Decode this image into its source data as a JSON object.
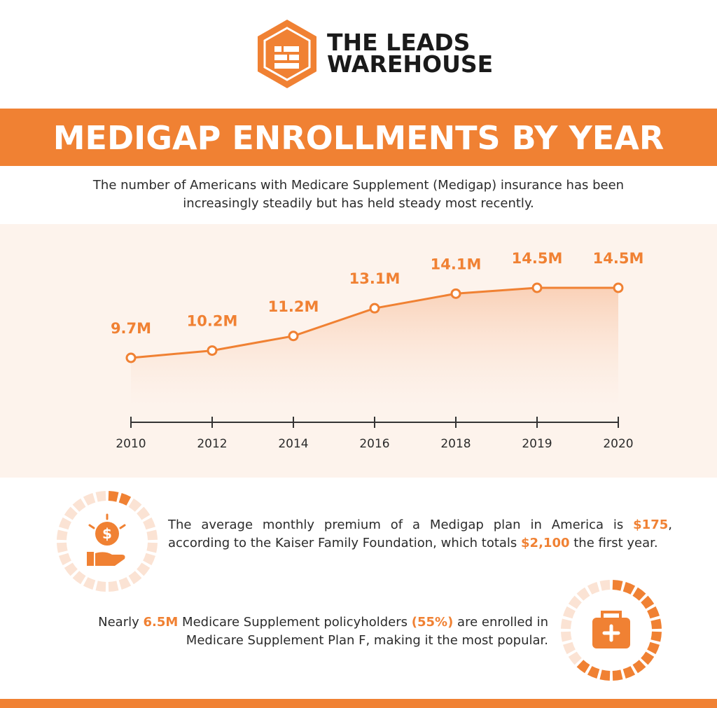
{
  "header": {
    "logo_line1": "THE LEADS",
    "logo_line2": "WAREHOUSE"
  },
  "title": "MEDIGAP ENROLLMENTS BY YEAR",
  "subtitle": "The number of Americans with Medicare Supplement (Medigap) insurance has been increasingly steadily but has held steady most recently.",
  "chart_data": {
    "type": "line",
    "categories": [
      "2010",
      "2012",
      "2014",
      "2016",
      "2018",
      "2019",
      "2020"
    ],
    "values": [
      9.7,
      10.2,
      11.2,
      13.1,
      14.1,
      14.5,
      14.5
    ],
    "value_labels": [
      "9.7M",
      "10.2M",
      "11.2M",
      "13.1M",
      "14.1M",
      "14.5M",
      "14.5M"
    ],
    "color": "#f08133"
  },
  "facts": [
    {
      "parts": [
        "The average monthly premium of a Medigap plan in America is ",
        "$175",
        ", according to the Kaiser Family Foundation, which totals ",
        "$2,100",
        " the first year."
      ]
    },
    {
      "parts": [
        "Nearly ",
        "6.5M",
        " Medicare Supplement policyholders ",
        "(55%)",
        " are enrolled in Medicare Supplement Plan F, making it the most popular."
      ]
    }
  ]
}
